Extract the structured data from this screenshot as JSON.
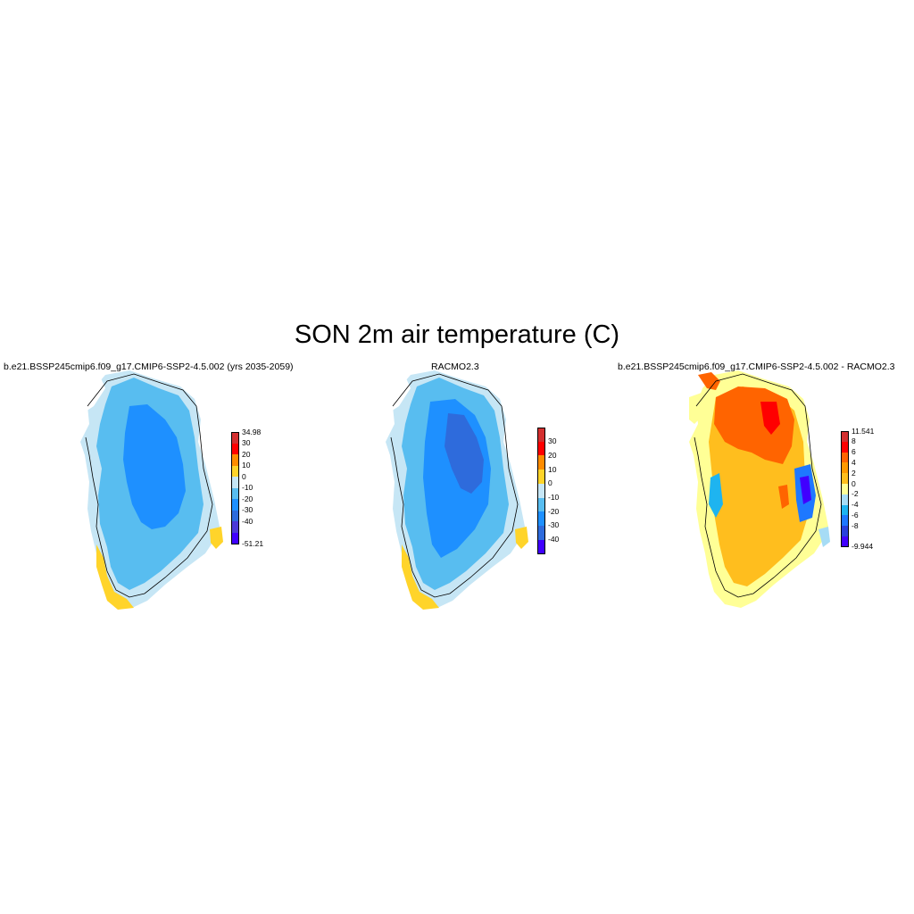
{
  "title": "SON 2m air temperature (C)",
  "panels": [
    {
      "title": "b.e21.BSSP245cmip6.f09_g17.CMIP6-SSP2-4.5.002 (yrs 2035-2059)",
      "colorbar": {
        "labels": [
          "34.98",
          "30",
          "20",
          "10",
          "0",
          "-10",
          "-20",
          "-30",
          "-40",
          "-51.21"
        ],
        "colors": [
          "#d32f2f",
          "#ff0000",
          "#ff8c00",
          "#ffd42a",
          "#c6e6f5",
          "#58bdf0",
          "#1e90ff",
          "#2e6bdc",
          "#4b3ad8",
          "#3f00ff"
        ]
      }
    },
    {
      "title": "RACMO2.3",
      "colorbar": {
        "labels": [
          "30",
          "20",
          "10",
          "0",
          "-10",
          "-20",
          "-30",
          "-40"
        ],
        "colors": [
          "#d32f2f",
          "#ff0000",
          "#ff8c00",
          "#ffd42a",
          "#c6e6f5",
          "#58bdf0",
          "#1e90ff",
          "#2e6bdc",
          "#3f00ff"
        ]
      }
    },
    {
      "title": "b.e21.BSSP245cmip6.f09_g17.CMIP6-SSP2-4.5.002 - RACMO2.3",
      "colorbar": {
        "labels": [
          "11.541",
          "8",
          "6",
          "4",
          "2",
          "0",
          "-2",
          "-4",
          "-6",
          "-8",
          "-9.944"
        ],
        "colors": [
          "#d32f2f",
          "#ff0000",
          "#ff6400",
          "#ff9900",
          "#ffbe1e",
          "#ffff96",
          "#a6dcf5",
          "#1eb4f0",
          "#1e78ff",
          "#2840dc",
          "#4000ff"
        ]
      }
    }
  ]
}
